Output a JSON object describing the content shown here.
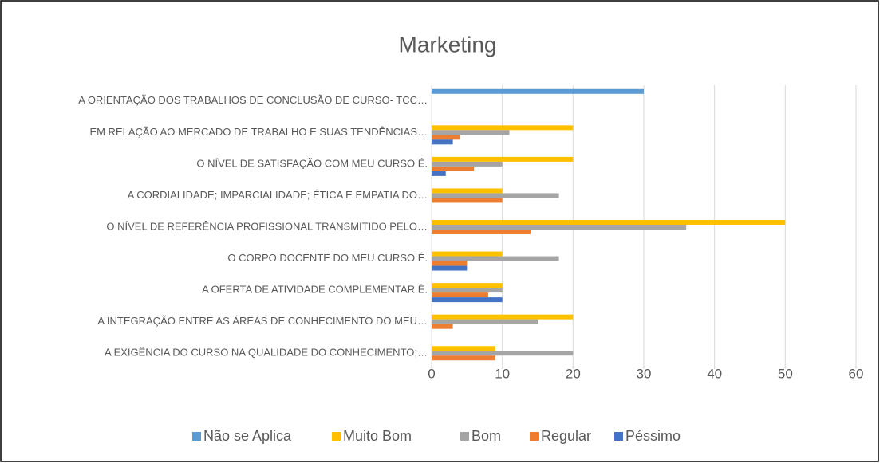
{
  "chart_data": {
    "type": "hbar",
    "title": "Marketing",
    "categories": [
      "A ORIENTAÇÃO DOS TRABALHOS DE CONCLUSÃO DE CURSO- TCC…",
      "EM RELAÇÃO AO MERCADO DE TRABALHO E SUAS TENDÊNCIAS…",
      "O NÍVEL DE SATISFAÇÃO COM MEU CURSO É.",
      "A CORDIALIDADE; IMPARCIALIDADE; ÉTICA E EMPATIA DO…",
      "O NÍVEL DE REFERÊNCIA PROFISSIONAL TRANSMITIDO PELO…",
      "O CORPO DOCENTE DO MEU CURSO É.",
      "A OFERTA DE ATIVIDADE COMPLEMENTAR É.",
      "A INTEGRAÇÃO ENTRE AS ÁREAS DE CONHECIMENTO DO MEU…",
      "A EXIGÊNCIA DO CURSO NA QUALIDADE DO CONHECIMENTO;…"
    ],
    "series": [
      {
        "name": "Não se Aplica",
        "color": "#5b9bd5",
        "values": [
          30,
          0,
          0,
          0,
          0,
          0,
          0,
          0,
          0
        ]
      },
      {
        "name": "Muito Bom",
        "color": "#ffc000",
        "values": [
          0,
          20,
          20,
          10,
          50,
          10,
          10,
          20,
          9
        ]
      },
      {
        "name": "Bom",
        "color": "#a5a5a5",
        "values": [
          0,
          11,
          10,
          18,
          36,
          18,
          10,
          15,
          20
        ]
      },
      {
        "name": "Regular",
        "color": "#ed7d31",
        "values": [
          0,
          4,
          6,
          10,
          14,
          5,
          8,
          3,
          9
        ]
      },
      {
        "name": "Péssimo",
        "color": "#4472c4",
        "values": [
          0,
          3,
          2,
          0,
          0,
          5,
          10,
          0,
          0
        ]
      }
    ],
    "xlim": [
      0,
      60
    ],
    "xticks": [
      0,
      10,
      20,
      30,
      40,
      50,
      60
    ],
    "grid": true,
    "legend": "bottom"
  }
}
